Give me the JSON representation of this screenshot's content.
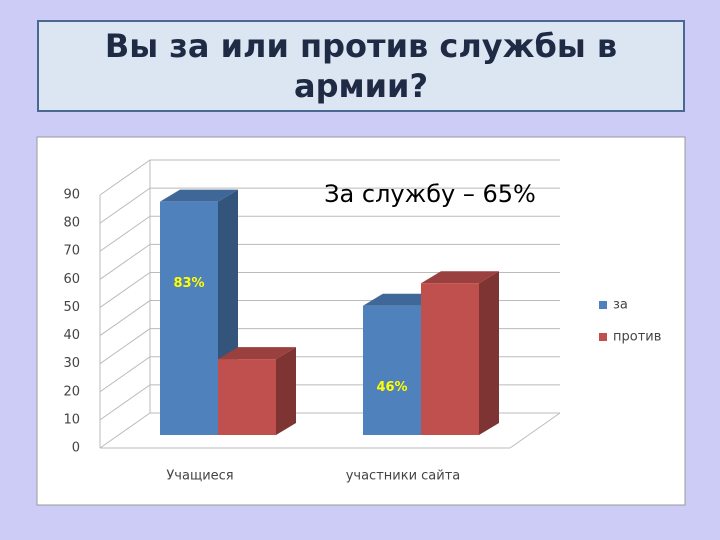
{
  "chart_data": {
    "type": "bar3d",
    "title": "Вы за или против службы в армии?",
    "annotation": "За службу – 65%",
    "categories": [
      "Учащиеся",
      "участники сайта"
    ],
    "series": [
      {
        "name": "за",
        "color": "#4f81bd",
        "values": [
          83,
          46
        ],
        "value_labels": [
          "83%",
          "46%"
        ]
      },
      {
        "name": "против",
        "color": "#c0504d",
        "values": [
          27,
          54
        ]
      }
    ],
    "ylim": [
      0,
      90
    ],
    "yticks": [
      0,
      10,
      20,
      30,
      40,
      50,
      60,
      70,
      80,
      90
    ],
    "grid": true,
    "legend": "right"
  }
}
